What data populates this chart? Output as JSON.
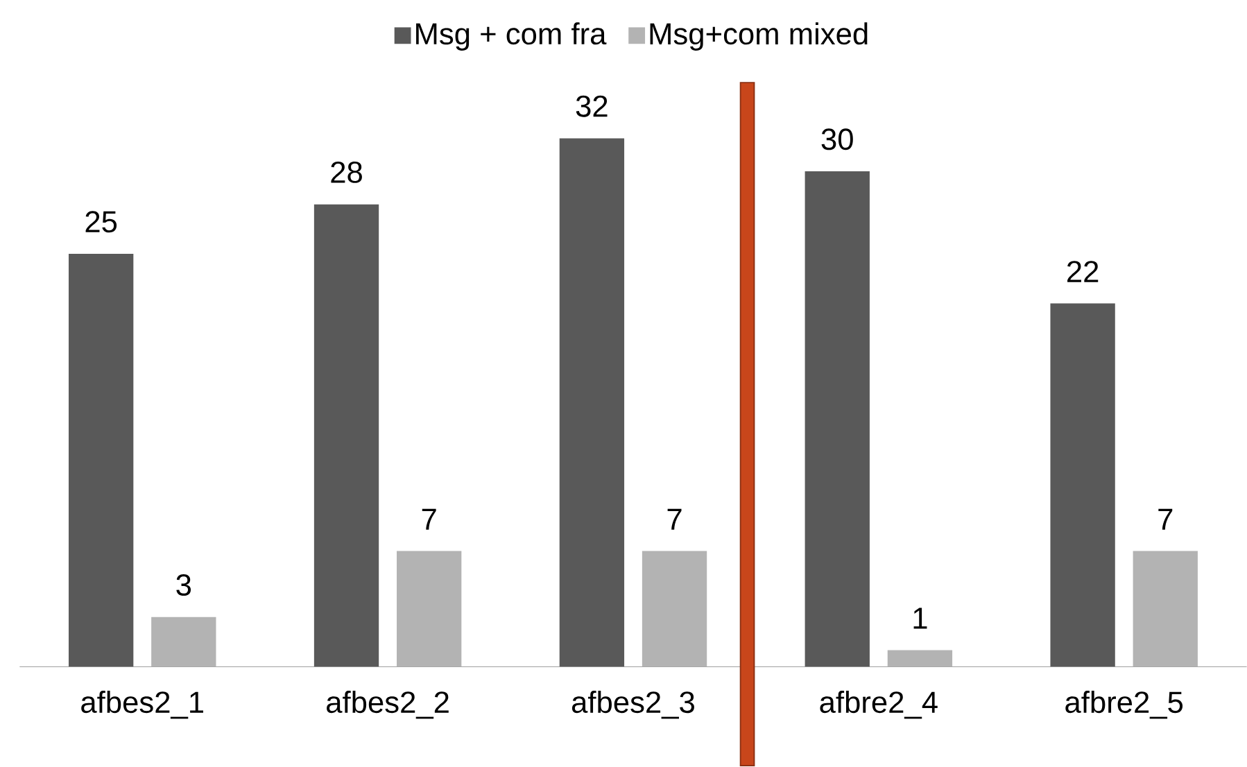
{
  "chart_data": {
    "type": "bar",
    "categories": [
      "afbes2_1",
      "afbes2_2",
      "afbes2_3",
      "afbre2_4",
      "afbre2_5"
    ],
    "series": [
      {
        "name": "Msg + com fra",
        "color": "#595959",
        "values": [
          25,
          28,
          32,
          30,
          22
        ]
      },
      {
        "name": "Msg+com mixed",
        "color": "#b3b3b3",
        "values": [
          3,
          7,
          7,
          1,
          7
        ]
      }
    ],
    "data_labels": true,
    "legend": "top"
  }
}
